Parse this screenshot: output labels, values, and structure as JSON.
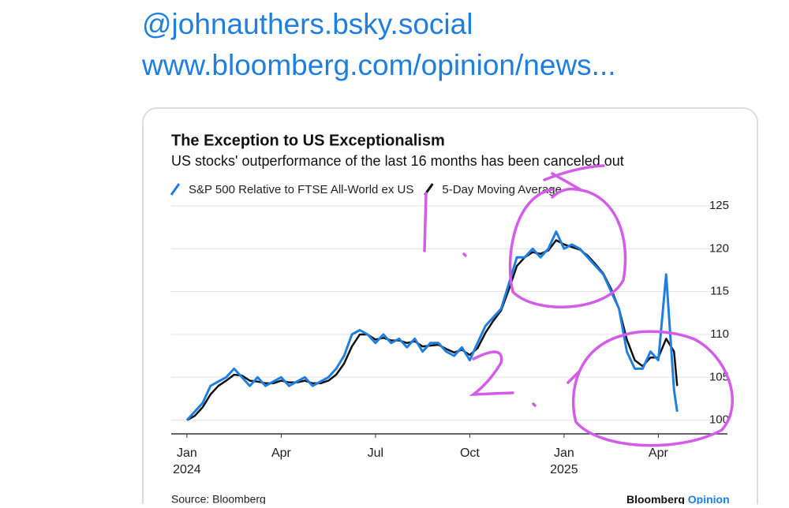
{
  "post": {
    "handle": "@johnauthers.bsky.social",
    "link": "www.bloomberg.com/opinion/news..."
  },
  "chart_data": {
    "type": "line",
    "title": "The Exception to US Exceptionalism",
    "subtitle": "US stocks' outperformance of the last 16 months has been canceled out",
    "x": [
      0,
      0.25,
      0.5,
      0.75,
      1,
      1.25,
      1.5,
      1.75,
      2,
      2.25,
      2.5,
      2.75,
      3,
      3.25,
      3.5,
      3.75,
      4,
      4.25,
      4.5,
      4.75,
      5,
      5.25,
      5.5,
      5.75,
      6,
      6.25,
      6.5,
      6.75,
      7,
      7.25,
      7.5,
      7.75,
      8,
      8.25,
      8.5,
      8.75,
      9,
      9.25,
      9.5,
      9.75,
      10,
      10.25,
      10.5,
      10.75,
      11,
      11.25,
      11.5,
      11.75,
      12,
      12.25,
      12.5,
      12.75,
      13,
      13.25,
      13.5,
      13.75,
      14,
      14.25,
      14.5,
      14.75,
      15,
      15.25,
      15.5,
      15.6
    ],
    "series": [
      {
        "name": "S&P 500 Relative to FTSE All-World ex US",
        "color": "#1f7fe0",
        "values": [
          100,
          101,
          102,
          104,
          104.5,
          105,
          106,
          105,
          104,
          105,
          104,
          104.5,
          105,
          104,
          104.5,
          105,
          104,
          104.5,
          105,
          106,
          107.5,
          110,
          110.5,
          110,
          109,
          110,
          109,
          109.5,
          108.5,
          109.5,
          108,
          109,
          109,
          108,
          107.5,
          108.5,
          107,
          109,
          111,
          112,
          113,
          116,
          119,
          119,
          120,
          119,
          120,
          122,
          120,
          120.5,
          120,
          119,
          118,
          117,
          115,
          113,
          108,
          106,
          106,
          108,
          107,
          117,
          103.5,
          101
        ]
      },
      {
        "name": "5-Day Moving Average",
        "color": "#111111",
        "values": [
          100,
          100.5,
          101.5,
          103,
          104,
          104.6,
          105.3,
          105.2,
          104.6,
          104.5,
          104.3,
          104.3,
          104.6,
          104.4,
          104.4,
          104.6,
          104.3,
          104.3,
          104.6,
          105.3,
          106.6,
          108.6,
          110,
          110,
          109.4,
          109.6,
          109.3,
          109.3,
          109,
          109.2,
          108.6,
          108.7,
          108.8,
          108.3,
          107.9,
          108.2,
          107.6,
          108.4,
          110.2,
          111.6,
          112.8,
          115.3,
          118,
          119,
          119.6,
          119.4,
          119.8,
          121,
          120.5,
          120.2,
          119.9,
          119.2,
          118.2,
          117.1,
          115.3,
          113,
          109.4,
          107,
          106.3,
          107.3,
          107.3,
          109.5,
          108,
          104
        ]
      }
    ],
    "xlim": [
      -0.5,
      17.2
    ],
    "xticks": [
      {
        "value": 0,
        "label": "Jan 2024"
      },
      {
        "value": 3,
        "label": "Apr"
      },
      {
        "value": 6,
        "label": "Jul"
      },
      {
        "value": 9,
        "label": "Oct"
      },
      {
        "value": 12,
        "label": "Jan 2025"
      },
      {
        "value": 15,
        "label": "Apr"
      }
    ],
    "ylim": [
      98.4,
      125
    ],
    "yticks": [
      100,
      105,
      110,
      115,
      120,
      125
    ],
    "grid": true,
    "source": "Source: Bloomberg",
    "brand": [
      "Bloomberg",
      "Opinion"
    ]
  }
}
